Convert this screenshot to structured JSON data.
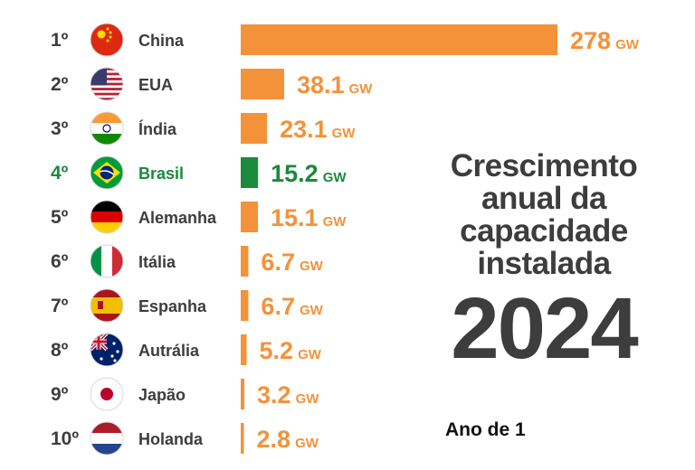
{
  "title_lines": [
    "Crescimento",
    "anual da",
    "capacidade",
    "instalada"
  ],
  "year": "2024",
  "subtitle": "Ano de 1",
  "colors": {
    "default_bar": "#f4923a",
    "highlight_bar": "#1a8a3c",
    "text": "#3d3d3d"
  },
  "chart_data": {
    "type": "bar",
    "orientation": "horizontal",
    "unit": "GW",
    "highlight": "Brasil",
    "rows": [
      {
        "rank": "1º",
        "country": "China",
        "flag": "china-flag-icon",
        "value": 278,
        "label": "278"
      },
      {
        "rank": "2º",
        "country": "EUA",
        "flag": "usa-flag-icon",
        "value": 38.1,
        "label": "38.1"
      },
      {
        "rank": "3º",
        "country": "Índia",
        "flag": "india-flag-icon",
        "value": 23.1,
        "label": "23.1"
      },
      {
        "rank": "4º",
        "country": "Brasil",
        "flag": "brazil-flag-icon",
        "value": 15.2,
        "label": "15.2"
      },
      {
        "rank": "5º",
        "country": "Alemanha",
        "flag": "germany-flag-icon",
        "value": 15.1,
        "label": "15.1"
      },
      {
        "rank": "6º",
        "country": "Itália",
        "flag": "italy-flag-icon",
        "value": 6.7,
        "label": "6.7"
      },
      {
        "rank": "7º",
        "country": "Espanha",
        "flag": "spain-flag-icon",
        "value": 6.7,
        "label": "6.7"
      },
      {
        "rank": "8º",
        "country": "Autrália",
        "flag": "australia-flag-icon",
        "value": 5.2,
        "label": "5.2"
      },
      {
        "rank": "9º",
        "country": "Japão",
        "flag": "japan-flag-icon",
        "value": 3.2,
        "label": "3.2"
      },
      {
        "rank": "10º",
        "country": "Holanda",
        "flag": "netherlands-flag-icon",
        "value": 2.8,
        "label": "2.8"
      }
    ]
  }
}
